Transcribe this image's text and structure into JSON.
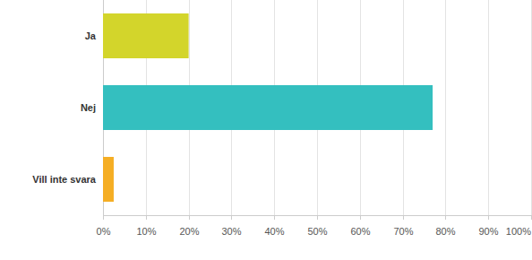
{
  "chart_data": {
    "type": "bar",
    "orientation": "horizontal",
    "categories": [
      "Ja",
      "Nej",
      "Vill inte svara"
    ],
    "values": [
      20,
      77,
      2.5
    ],
    "colors": [
      "#d3d52b",
      "#34bfbf",
      "#f5ae24"
    ],
    "xlim": [
      0,
      100
    ],
    "xticks": [
      {
        "value": 0,
        "label": "0%"
      },
      {
        "value": 10,
        "label": "10%"
      },
      {
        "value": 20,
        "label": "20%"
      },
      {
        "value": 30,
        "label": "30%"
      },
      {
        "value": 40,
        "label": "40%"
      },
      {
        "value": 50,
        "label": "50%"
      },
      {
        "value": 60,
        "label": "60%"
      },
      {
        "value": 70,
        "label": "70%"
      },
      {
        "value": 80,
        "label": "80%"
      },
      {
        "value": 90,
        "label": "90%"
      },
      {
        "value": 100,
        "label": "100%"
      }
    ],
    "grid": true
  }
}
